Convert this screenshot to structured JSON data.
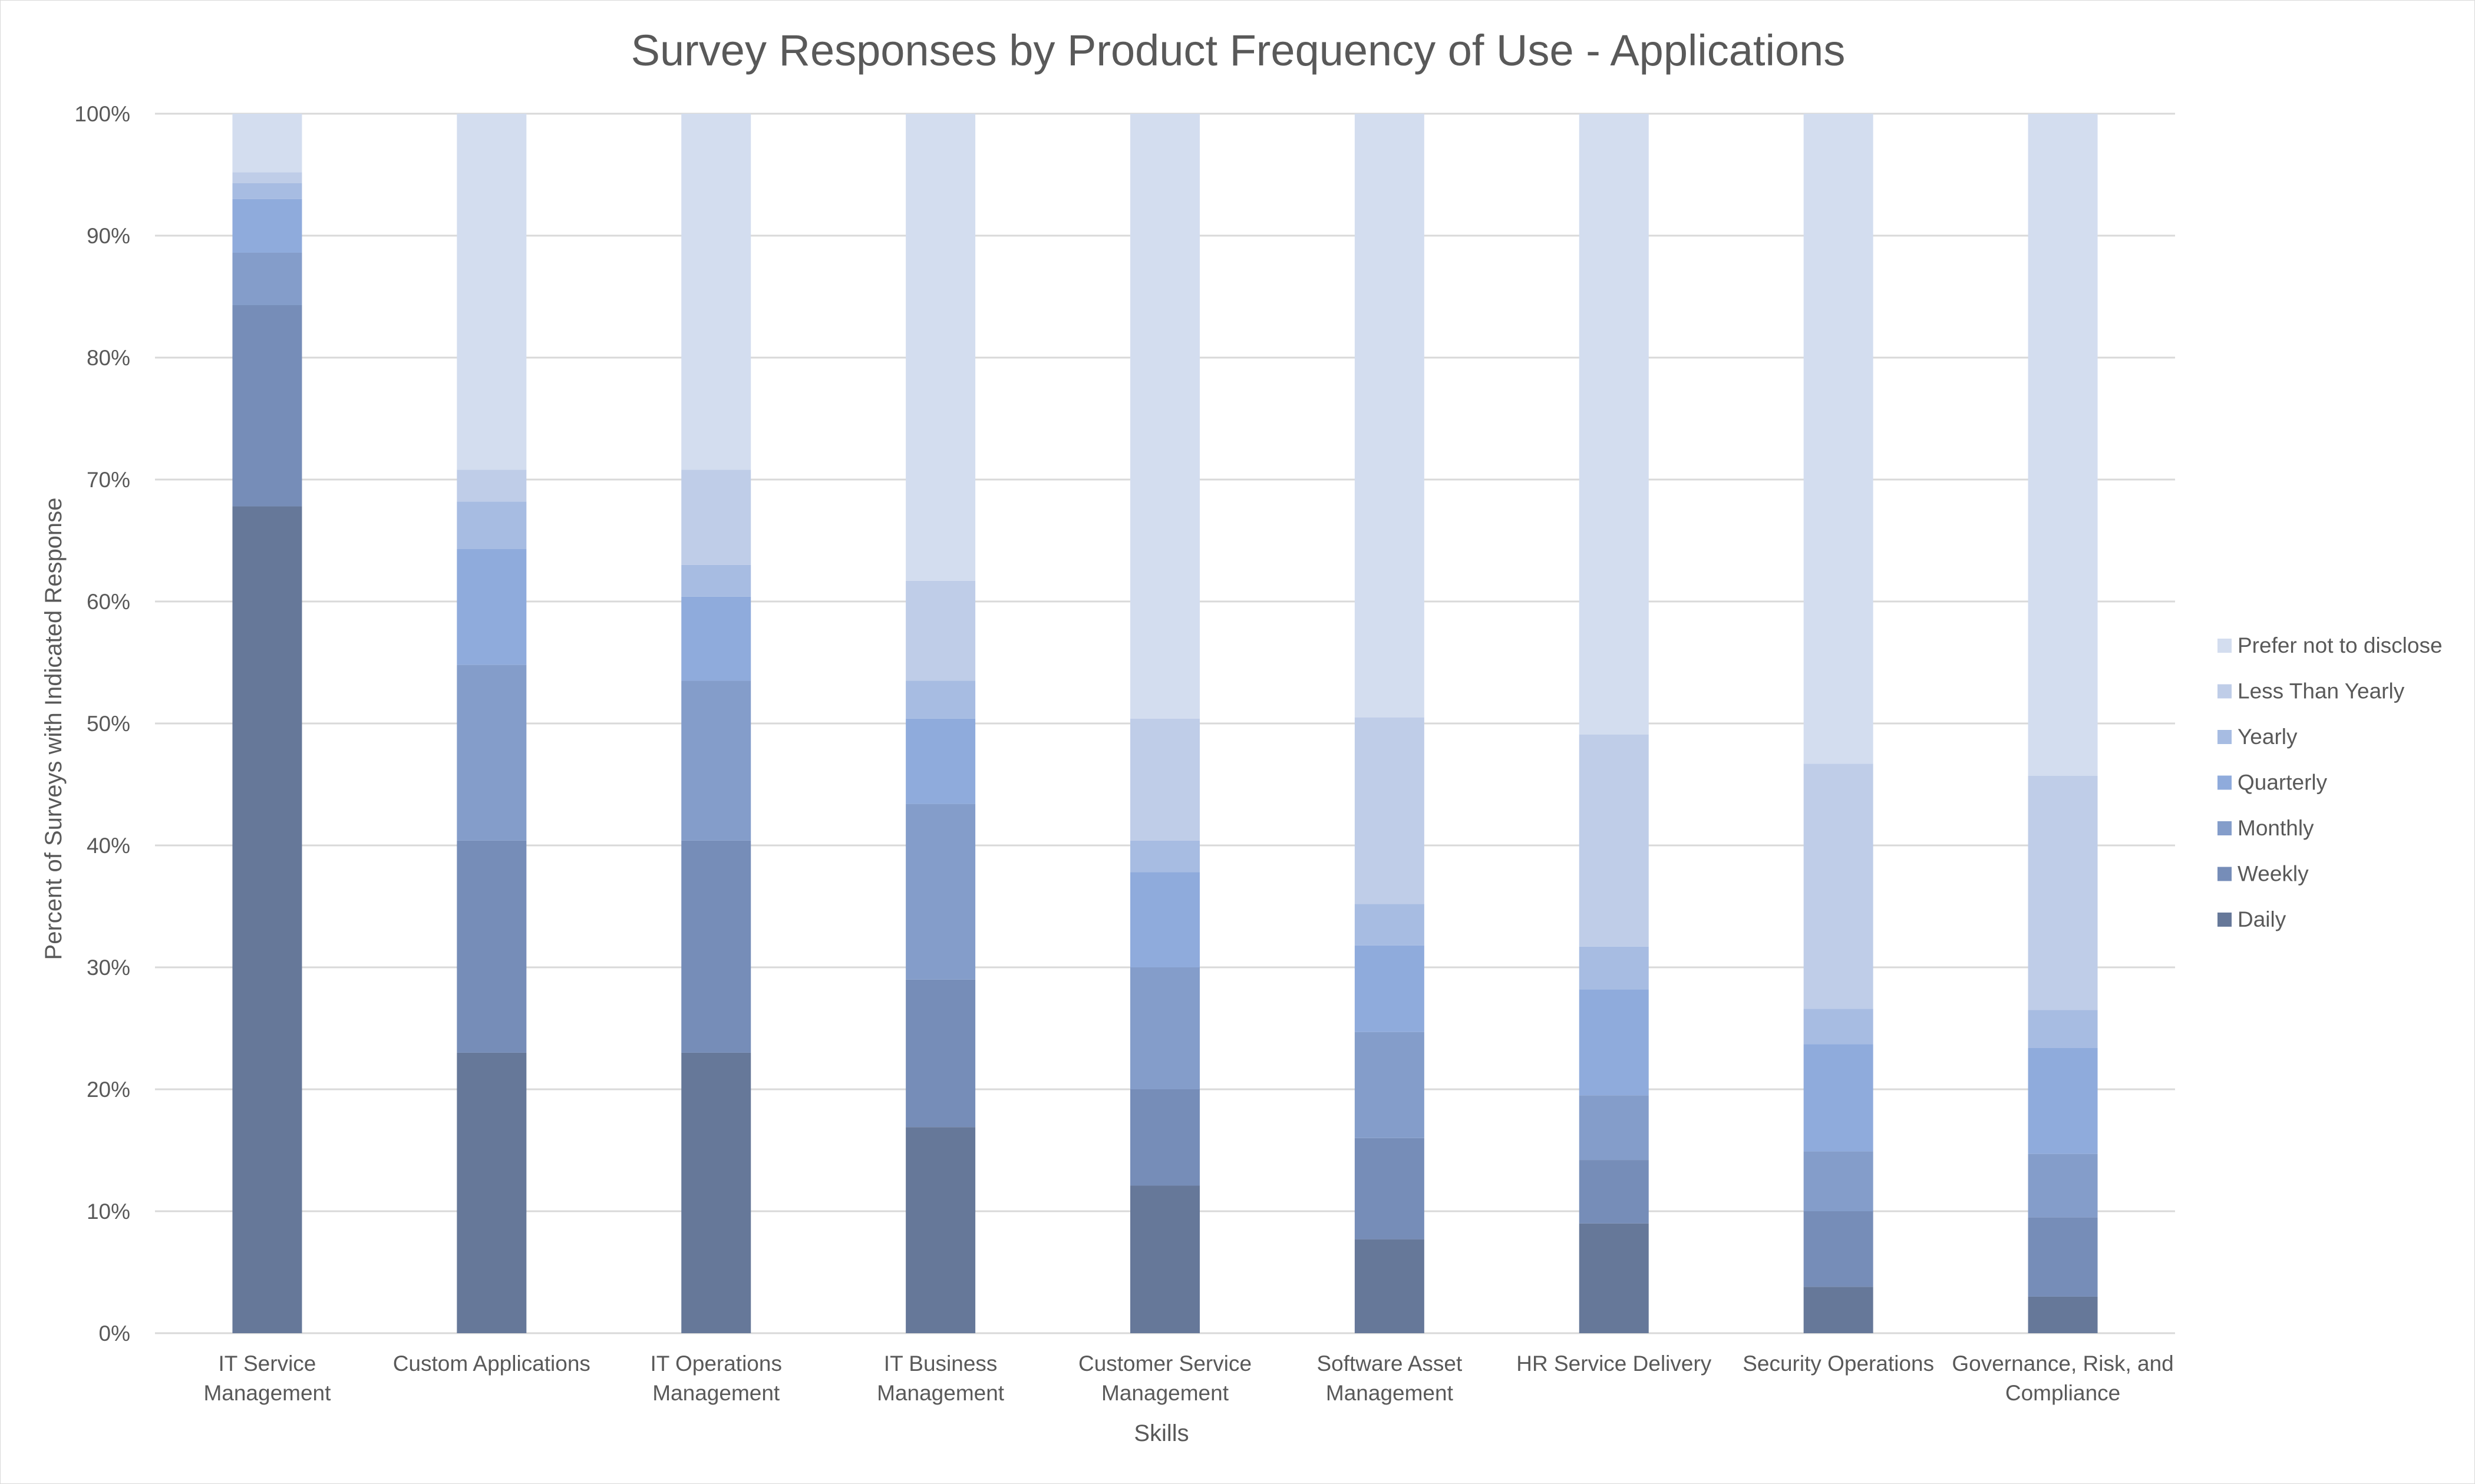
{
  "chart_data": {
    "type": "bar",
    "stacked": "percent",
    "title": "Survey Responses by Product Frequency of Use - Applications",
    "xlabel": "Skills",
    "ylabel": "Percent of Surveys with Indicated Response",
    "ylim": [
      0,
      100
    ],
    "y_ticks": [
      "0%",
      "10%",
      "20%",
      "30%",
      "40%",
      "50%",
      "60%",
      "70%",
      "80%",
      "90%",
      "100%"
    ],
    "grid": true,
    "legend_position": "right",
    "categories": [
      [
        "IT Service",
        "Management"
      ],
      [
        "Custom Applications"
      ],
      [
        "IT Operations",
        "Management"
      ],
      [
        "IT Business",
        "Management"
      ],
      [
        "Customer Service",
        "Management"
      ],
      [
        "Software Asset",
        "Management"
      ],
      [
        "HR Service Delivery"
      ],
      [
        "Security Operations"
      ],
      [
        "Governance, Risk, and",
        "Compliance"
      ]
    ],
    "series": [
      {
        "name": "Daily",
        "color": "#667899",
        "values": [
          67.8,
          23.0,
          23.0,
          16.9,
          12.1,
          7.7,
          9.0,
          3.8,
          3.0
        ]
      },
      {
        "name": "Weekly",
        "color": "#768db8",
        "values": [
          16.5,
          17.4,
          17.4,
          12.1,
          7.9,
          8.3,
          5.2,
          6.2,
          6.5
        ]
      },
      {
        "name": "Monthly",
        "color": "#849dca",
        "values": [
          4.3,
          14.4,
          13.1,
          14.4,
          10.0,
          8.7,
          5.3,
          4.9,
          5.2
        ]
      },
      {
        "name": "Quarterly",
        "color": "#8fabdc",
        "values": [
          4.4,
          9.5,
          6.9,
          7.0,
          7.8,
          7.1,
          8.7,
          8.8,
          8.7
        ]
      },
      {
        "name": "Yearly",
        "color": "#a7bce2",
        "values": [
          1.3,
          3.9,
          2.6,
          3.1,
          2.6,
          3.4,
          3.5,
          2.9,
          3.1
        ]
      },
      {
        "name": "Less Than Yearly",
        "color": "#bfcde8",
        "values": [
          0.9,
          2.6,
          7.8,
          8.2,
          10.0,
          15.3,
          17.4,
          20.1,
          19.2
        ]
      },
      {
        "name": "Prefer not to disclose",
        "color": "#d3ddef",
        "values": [
          4.8,
          29.2,
          29.2,
          38.3,
          49.6,
          49.5,
          50.9,
          53.3,
          54.3
        ]
      }
    ]
  }
}
